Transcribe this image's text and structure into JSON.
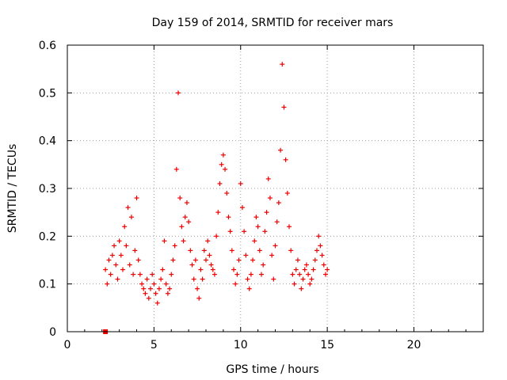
{
  "chart_data": {
    "type": "scatter",
    "title": "Day 159 of 2014, SRMTID for receiver mars",
    "xlabel": "GPS time / hours",
    "ylabel": "SRMTID / TECUs",
    "xlim": [
      0,
      24
    ],
    "ylim": [
      0,
      0.6
    ],
    "xticks": [
      "0",
      "5",
      "10",
      "15",
      "20"
    ],
    "yticks": [
      "0",
      "0.1",
      "0.2",
      "0.3",
      "0.4",
      "0.5",
      "0.6"
    ],
    "grid": true,
    "legend": "none",
    "marker": "plus",
    "series_color": "#ee0000",
    "outlier_point": {
      "x": 2.2,
      "y": 0.0
    },
    "series": [
      {
        "x": [
          2.2,
          2.3,
          2.4,
          2.5,
          2.6,
          2.7,
          2.8,
          2.9,
          3.0,
          3.1,
          3.2,
          3.3,
          3.4,
          3.5,
          3.6,
          3.7,
          3.8,
          3.9,
          4.0,
          4.1,
          4.2,
          4.3,
          4.4,
          4.5,
          4.6,
          4.7,
          4.8,
          4.9,
          5.0,
          5.1,
          5.2,
          5.3,
          5.4,
          5.5,
          5.6,
          5.7,
          5.8,
          5.9,
          6.0,
          6.1,
          6.2,
          6.3,
          6.4,
          6.5,
          6.6,
          6.7,
          6.8,
          6.9,
          7.0,
          7.1,
          7.2,
          7.3,
          7.4,
          7.5,
          7.6,
          7.7,
          7.8,
          7.9,
          8.0,
          8.1,
          8.2,
          8.3,
          8.4,
          8.5,
          8.6,
          8.7,
          8.8,
          8.9,
          9.0,
          9.1,
          9.2,
          9.3,
          9.4,
          9.5,
          9.6,
          9.7,
          9.8,
          9.9,
          10.0,
          10.1,
          10.2,
          10.3,
          10.4,
          10.5,
          10.6,
          10.7,
          10.8,
          10.9,
          11.0,
          11.1,
          11.2,
          11.3,
          11.4,
          11.5,
          11.6,
          11.7,
          11.8,
          11.9,
          12.0,
          12.1,
          12.2,
          12.3,
          12.4,
          12.5,
          12.6,
          12.7,
          12.8,
          12.9,
          13.0,
          13.1,
          13.2,
          13.3,
          13.4,
          13.5,
          13.6,
          13.7,
          13.8,
          13.9,
          14.0,
          14.1,
          14.2,
          14.3,
          14.4,
          14.5,
          14.6,
          14.7,
          14.8,
          14.9,
          15.0
        ],
        "y": [
          0.13,
          0.1,
          0.15,
          0.12,
          0.16,
          0.18,
          0.14,
          0.11,
          0.19,
          0.16,
          0.13,
          0.22,
          0.18,
          0.26,
          0.14,
          0.24,
          0.12,
          0.17,
          0.28,
          0.15,
          0.12,
          0.1,
          0.09,
          0.08,
          0.11,
          0.07,
          0.09,
          0.12,
          0.1,
          0.08,
          0.06,
          0.09,
          0.11,
          0.13,
          0.19,
          0.1,
          0.08,
          0.09,
          0.12,
          0.15,
          0.18,
          0.34,
          0.5,
          0.28,
          0.22,
          0.19,
          0.24,
          0.27,
          0.23,
          0.17,
          0.14,
          0.11,
          0.15,
          0.09,
          0.07,
          0.13,
          0.11,
          0.17,
          0.15,
          0.19,
          0.16,
          0.14,
          0.13,
          0.12,
          0.2,
          0.25,
          0.31,
          0.35,
          0.37,
          0.34,
          0.29,
          0.24,
          0.21,
          0.17,
          0.13,
          0.1,
          0.12,
          0.15,
          0.31,
          0.26,
          0.21,
          0.16,
          0.11,
          0.09,
          0.12,
          0.15,
          0.19,
          0.24,
          0.22,
          0.17,
          0.12,
          0.14,
          0.21,
          0.25,
          0.32,
          0.28,
          0.16,
          0.11,
          0.18,
          0.23,
          0.27,
          0.38,
          0.56,
          0.47,
          0.36,
          0.29,
          0.22,
          0.17,
          0.12,
          0.1,
          0.13,
          0.15,
          0.12,
          0.09,
          0.11,
          0.13,
          0.14,
          0.12,
          0.1,
          0.11,
          0.13,
          0.15,
          0.17,
          0.2,
          0.18,
          0.16,
          0.14,
          0.12,
          0.13
        ]
      }
    ]
  }
}
